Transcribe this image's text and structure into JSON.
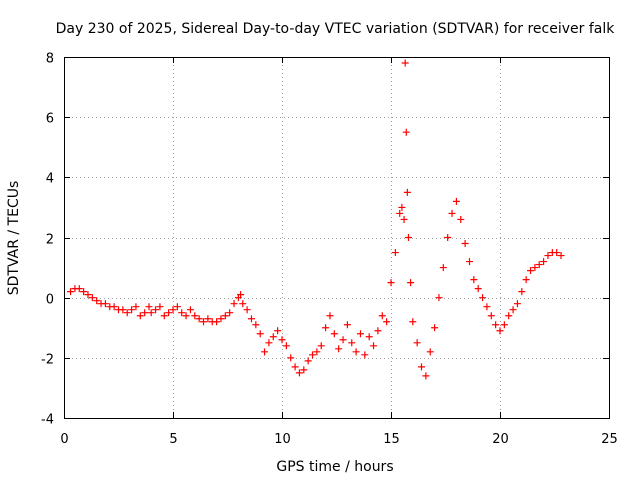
{
  "chart_data": {
    "type": "scatter",
    "title": "Day 230 of 2025, Sidereal Day-to-day VTEC variation (SDTVAR) for receiver falk",
    "xlabel": "GPS time / hours",
    "ylabel": "SDTVAR / TECUs",
    "xlim": [
      0,
      25
    ],
    "ylim": [
      -4,
      8
    ],
    "xticks": [
      0,
      5,
      10,
      15,
      20,
      25
    ],
    "yticks": [
      -4,
      -2,
      0,
      2,
      4,
      6,
      8
    ],
    "xtick_labels": [
      "0",
      "5",
      "10",
      "15",
      "20",
      "25"
    ],
    "ytick_labels": [
      "-4",
      "-2",
      "0",
      "2",
      "4",
      "6",
      "8"
    ],
    "grid": true,
    "marker": "+",
    "color": "#ff0000",
    "series": [
      {
        "name": "SDTVAR",
        "x": [
          0.3,
          0.5,
          0.7,
          0.9,
          1.1,
          1.3,
          1.5,
          1.7,
          1.9,
          2.1,
          2.3,
          2.5,
          2.7,
          2.9,
          3.1,
          3.3,
          3.5,
          3.7,
          3.9,
          4.0,
          4.2,
          4.4,
          4.6,
          4.8,
          5.0,
          5.2,
          5.4,
          5.6,
          5.8,
          6.0,
          6.2,
          6.4,
          6.6,
          6.8,
          7.0,
          7.2,
          7.4,
          7.6,
          7.8,
          8.0,
          8.1,
          8.2,
          8.4,
          8.6,
          8.8,
          9.0,
          9.2,
          9.4,
          9.6,
          9.8,
          10.0,
          10.2,
          10.4,
          10.6,
          10.8,
          11.0,
          11.2,
          11.4,
          11.6,
          11.8,
          12.0,
          12.2,
          12.4,
          12.6,
          12.8,
          13.0,
          13.2,
          13.4,
          13.6,
          13.8,
          14.0,
          14.2,
          14.4,
          14.6,
          14.8,
          15.0,
          15.2,
          15.4,
          15.5,
          15.6,
          15.65,
          15.7,
          15.75,
          15.8,
          15.9,
          16.0,
          16.2,
          16.4,
          16.6,
          16.8,
          17.0,
          17.2,
          17.4,
          17.6,
          17.8,
          18.0,
          18.2,
          18.4,
          18.6,
          18.8,
          19.0,
          19.2,
          19.4,
          19.6,
          19.8,
          20.0,
          20.2,
          20.4,
          20.6,
          20.8,
          21.0,
          21.2,
          21.4,
          21.6,
          21.8,
          22.0,
          22.2,
          22.4,
          22.6,
          22.8
        ],
        "y": [
          0.2,
          0.3,
          0.3,
          0.2,
          0.1,
          0.0,
          -0.1,
          -0.2,
          -0.2,
          -0.3,
          -0.3,
          -0.4,
          -0.4,
          -0.5,
          -0.4,
          -0.3,
          -0.6,
          -0.5,
          -0.3,
          -0.5,
          -0.4,
          -0.3,
          -0.6,
          -0.5,
          -0.4,
          -0.3,
          -0.5,
          -0.6,
          -0.4,
          -0.6,
          -0.7,
          -0.8,
          -0.7,
          -0.8,
          -0.8,
          -0.7,
          -0.6,
          -0.5,
          -0.2,
          0.0,
          0.1,
          -0.2,
          -0.4,
          -0.7,
          -0.9,
          -1.2,
          -1.8,
          -1.5,
          -1.3,
          -1.1,
          -1.4,
          -1.6,
          -2.0,
          -2.3,
          -2.5,
          -2.4,
          -2.1,
          -1.9,
          -1.8,
          -1.6,
          -1.0,
          -0.6,
          -1.2,
          -1.7,
          -1.4,
          -0.9,
          -1.5,
          -1.8,
          -1.2,
          -1.9,
          -1.3,
          -1.6,
          -1.1,
          -0.6,
          -0.8,
          0.5,
          1.5,
          2.8,
          3.0,
          2.6,
          7.8,
          5.5,
          3.5,
          2.0,
          0.5,
          -0.8,
          -1.5,
          -2.3,
          -2.6,
          -1.8,
          -1.0,
          0.0,
          1.0,
          2.0,
          2.8,
          3.2,
          2.6,
          1.8,
          1.2,
          0.6,
          0.3,
          0.0,
          -0.3,
          -0.6,
          -0.9,
          -1.1,
          -0.9,
          -0.6,
          -0.4,
          -0.2,
          0.2,
          0.6,
          0.9,
          1.0,
          1.1,
          1.2,
          1.4,
          1.5,
          1.5,
          1.4
        ]
      }
    ]
  }
}
